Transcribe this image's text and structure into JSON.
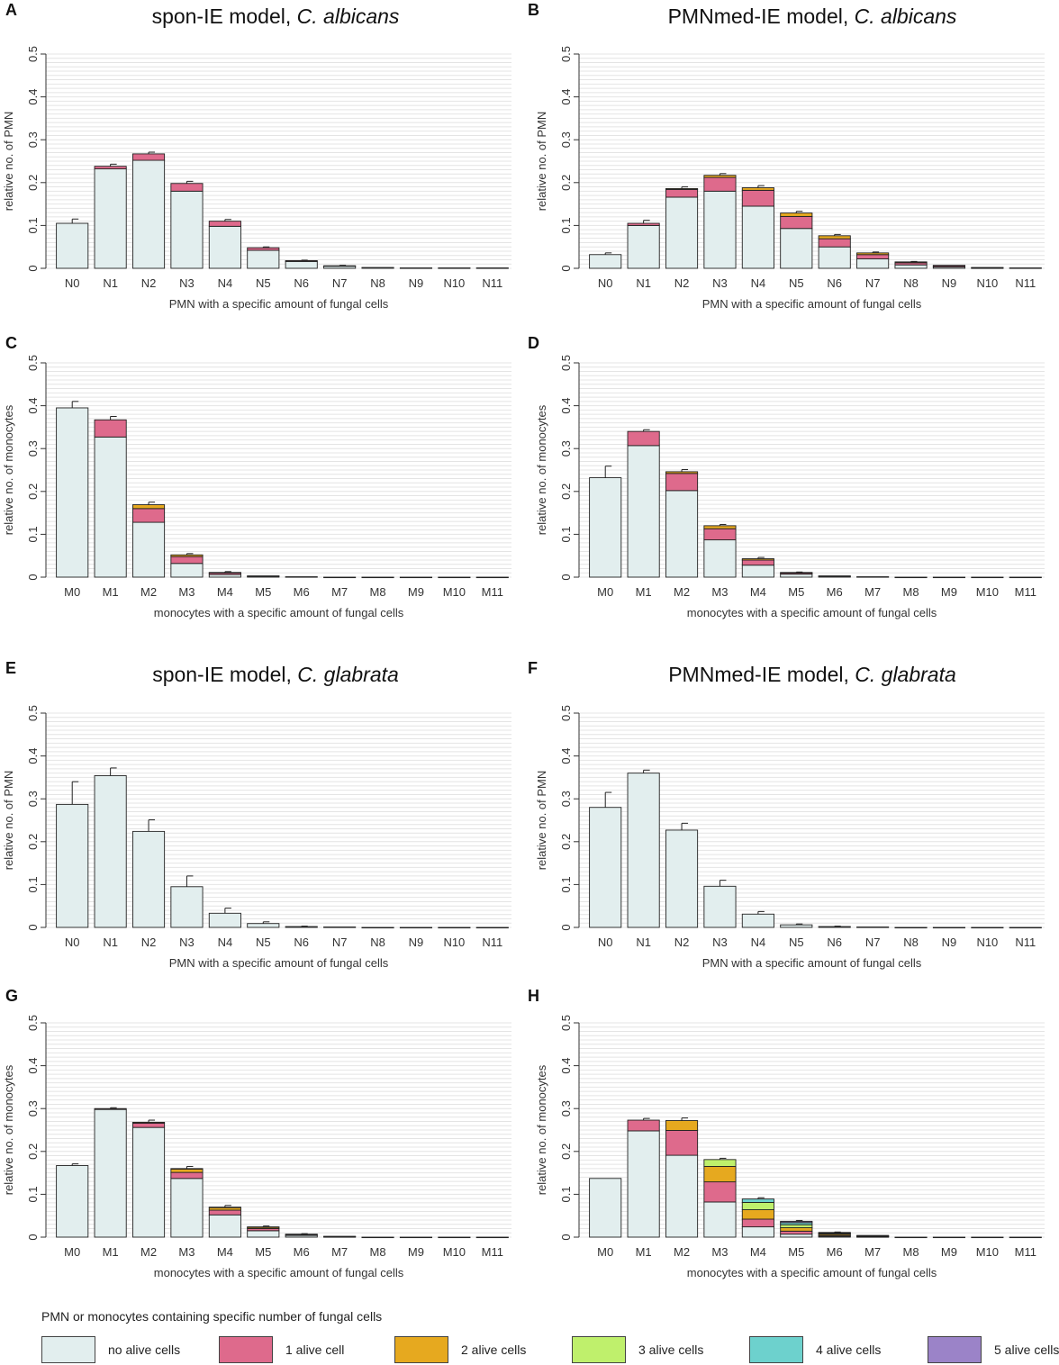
{
  "colors": {
    "none": "#e2eeee",
    "one": "#de6a8c",
    "two": "#e6a91f",
    "three": "#bff06c",
    "four": "#6dd1cd",
    "five": "#9b83c8",
    "axis": "#333333",
    "grid": "#e4e4e4"
  },
  "legend": {
    "title": "PMN or monocytes containing specific number of fungal cells",
    "items": [
      {
        "key": "none",
        "label": "no alive cells"
      },
      {
        "key": "one",
        "label": "1 alive cell"
      },
      {
        "key": "two",
        "label": "2 alive cells"
      },
      {
        "key": "three",
        "label": "3 alive cells"
      },
      {
        "key": "four",
        "label": "4 alive cells"
      },
      {
        "key": "five",
        "label": "5 alive cells"
      }
    ]
  },
  "section_titles": [
    {
      "plain": "spon-IE model, ",
      "italic": "C. albicans"
    },
    {
      "plain": "PMNmed-IE model, ",
      "italic": "C. albicans"
    },
    {
      "plain": "spon-IE model, ",
      "italic": "C. glabrata"
    },
    {
      "plain": "PMNmed-IE model, ",
      "italic": "C. glabrata"
    }
  ],
  "chart_data": [
    {
      "panel": "A",
      "type": "bar",
      "stacked": true,
      "categories": [
        "N0",
        "N1",
        "N2",
        "N3",
        "N4",
        "N5",
        "N6",
        "N7",
        "N8",
        "N9",
        "N10",
        "N11"
      ],
      "series": [
        {
          "name": "no alive cells",
          "values": [
            0.105,
            0.232,
            0.252,
            0.18,
            0.098,
            0.042,
            0.016,
            0.005,
            0.002,
            0.001,
            0.001,
            0.001
          ]
        },
        {
          "name": "1 alive cell",
          "values": [
            0,
            0.006,
            0.015,
            0.018,
            0.012,
            0.006,
            0.002,
            0.001,
            0,
            0,
            0,
            0
          ]
        },
        {
          "name": "2 alive cells",
          "values": [
            0,
            0,
            0,
            0,
            0,
            0,
            0,
            0,
            0,
            0,
            0,
            0
          ]
        }
      ],
      "errors": [
        0.01,
        0.005,
        0.004,
        0.005,
        0.004,
        0.002,
        0.001,
        0.001,
        0,
        0,
        0,
        0
      ],
      "ylabel": "relative no. of PMN",
      "xlabel": "PMN with a specific amount of fungal cells",
      "ylim": [
        0,
        0.5
      ],
      "yticks": [
        "0",
        "0.1",
        "0.2",
        "0.3",
        "0.4",
        "0.5"
      ]
    },
    {
      "panel": "B",
      "type": "bar",
      "stacked": true,
      "categories": [
        "N0",
        "N1",
        "N2",
        "N3",
        "N4",
        "N5",
        "N6",
        "N7",
        "N8",
        "N9",
        "N10",
        "N11"
      ],
      "series": [
        {
          "name": "no alive cells",
          "values": [
            0.032,
            0.1,
            0.166,
            0.18,
            0.145,
            0.093,
            0.05,
            0.022,
            0.008,
            0.003,
            0.001,
            0.001
          ]
        },
        {
          "name": "1 alive cell",
          "values": [
            0,
            0.005,
            0.018,
            0.032,
            0.037,
            0.028,
            0.019,
            0.01,
            0.005,
            0.003,
            0.001,
            0
          ]
        },
        {
          "name": "2 alive cells",
          "values": [
            0,
            0,
            0.002,
            0.005,
            0.006,
            0.008,
            0.007,
            0.004,
            0.002,
            0.001,
            0,
            0
          ]
        }
      ],
      "errors": [
        0.004,
        0.007,
        0.004,
        0.004,
        0.005,
        0.004,
        0.003,
        0.002,
        0.001,
        0,
        0,
        0
      ],
      "ylabel": "relative no. of PMN",
      "xlabel": "PMN with a specific amount of fungal cells",
      "ylim": [
        0,
        0.5
      ],
      "yticks": [
        "0",
        "0.1",
        "0.2",
        "0.3",
        "0.4",
        "0.5"
      ]
    },
    {
      "panel": "C",
      "type": "bar",
      "stacked": true,
      "categories": [
        "M0",
        "M1",
        "M2",
        "M3",
        "M4",
        "M5",
        "M6",
        "M7",
        "M8",
        "M9",
        "M10",
        "M11"
      ],
      "series": [
        {
          "name": "no alive cells",
          "values": [
            0.395,
            0.327,
            0.128,
            0.032,
            0.006,
            0.002,
            0.001,
            0,
            0,
            0,
            0,
            0
          ]
        },
        {
          "name": "1 alive cell",
          "values": [
            0,
            0.04,
            0.032,
            0.016,
            0.004,
            0.001,
            0,
            0,
            0,
            0,
            0,
            0
          ]
        },
        {
          "name": "2 alive cells",
          "values": [
            0,
            0,
            0.009,
            0.004,
            0.001,
            0,
            0,
            0,
            0,
            0,
            0,
            0
          ]
        }
      ],
      "errors": [
        0.015,
        0.008,
        0.006,
        0.003,
        0.002,
        0,
        0,
        0,
        0,
        0,
        0,
        0
      ],
      "ylabel": "relative no. of monocytes",
      "xlabel": "monocytes with a specific amount of fungal cells",
      "ylim": [
        0,
        0.5
      ],
      "yticks": [
        "0",
        "0.1",
        "0.2",
        "0.3",
        "0.4",
        "0.5"
      ]
    },
    {
      "panel": "D",
      "type": "bar",
      "stacked": true,
      "categories": [
        "M0",
        "M1",
        "M2",
        "M3",
        "M4",
        "M5",
        "M6",
        "M7",
        "M8",
        "M9",
        "M10",
        "M11"
      ],
      "series": [
        {
          "name": "no alive cells",
          "values": [
            0.232,
            0.307,
            0.202,
            0.087,
            0.028,
            0.007,
            0.002,
            0.001,
            0,
            0,
            0,
            0
          ]
        },
        {
          "name": "1 alive cell",
          "values": [
            0,
            0.033,
            0.04,
            0.026,
            0.012,
            0.003,
            0.001,
            0,
            0,
            0,
            0,
            0
          ]
        },
        {
          "name": "2 alive cells",
          "values": [
            0,
            0,
            0.004,
            0.007,
            0.003,
            0.001,
            0,
            0,
            0,
            0,
            0,
            0
          ]
        }
      ],
      "errors": [
        0.027,
        0.004,
        0.005,
        0.003,
        0.003,
        0.001,
        0,
        0,
        0,
        0,
        0,
        0
      ],
      "ylabel": "relative no. of monocytes",
      "xlabel": "monocytes with a specific amount of fungal cells",
      "ylim": [
        0,
        0.5
      ],
      "yticks": [
        "0",
        "0.1",
        "0.2",
        "0.3",
        "0.4",
        "0.5"
      ]
    },
    {
      "panel": "E",
      "type": "bar",
      "stacked": true,
      "categories": [
        "N0",
        "N1",
        "N2",
        "N3",
        "N4",
        "N5",
        "N6",
        "N7",
        "N8",
        "N9",
        "N10",
        "N11"
      ],
      "series": [
        {
          "name": "no alive cells",
          "values": [
            0.287,
            0.354,
            0.224,
            0.095,
            0.033,
            0.009,
            0.002,
            0.001,
            0,
            0,
            0,
            0
          ]
        }
      ],
      "errors": [
        0.053,
        0.018,
        0.027,
        0.025,
        0.012,
        0.004,
        0.001,
        0,
        0,
        0,
        0,
        0
      ],
      "ylabel": "relative no. of PMN",
      "xlabel": "PMN with a specific amount of fungal cells",
      "ylim": [
        0,
        0.5
      ],
      "yticks": [
        "0",
        "0.1",
        "0.2",
        "0.3",
        "0.4",
        "0.5"
      ]
    },
    {
      "panel": "F",
      "type": "bar",
      "stacked": true,
      "categories": [
        "N0",
        "N1",
        "N2",
        "N3",
        "N4",
        "N5",
        "N6",
        "N7",
        "N8",
        "N9",
        "N10",
        "N11"
      ],
      "series": [
        {
          "name": "no alive cells",
          "values": [
            0.28,
            0.36,
            0.227,
            0.096,
            0.031,
            0.006,
            0.002,
            0.001,
            0,
            0,
            0,
            0
          ]
        }
      ],
      "errors": [
        0.035,
        0.007,
        0.016,
        0.014,
        0.006,
        0.002,
        0.001,
        0,
        0,
        0,
        0,
        0
      ],
      "ylabel": "relative no. of PMN",
      "xlabel": "PMN with a specific amount of fungal cells",
      "ylim": [
        0,
        0.5
      ],
      "yticks": [
        "0",
        "0.1",
        "0.2",
        "0.3",
        "0.4",
        "0.5"
      ]
    },
    {
      "panel": "G",
      "type": "bar",
      "stacked": true,
      "categories": [
        "M0",
        "M1",
        "M2",
        "M3",
        "M4",
        "M5",
        "M6",
        "M7",
        "M8",
        "M9",
        "M10",
        "M11"
      ],
      "series": [
        {
          "name": "no alive cells",
          "values": [
            0.167,
            0.298,
            0.256,
            0.137,
            0.052,
            0.015,
            0.004,
            0.001,
            0,
            0,
            0,
            0
          ]
        },
        {
          "name": "1 alive cell",
          "values": [
            0,
            0.002,
            0.01,
            0.014,
            0.011,
            0.005,
            0.002,
            0.001,
            0,
            0,
            0,
            0
          ]
        },
        {
          "name": "2 alive cells",
          "values": [
            0,
            0,
            0.002,
            0.008,
            0.006,
            0.003,
            0.001,
            0,
            0,
            0,
            0,
            0
          ]
        },
        {
          "name": "3 alive cells",
          "values": [
            0,
            0,
            0,
            0.001,
            0.001,
            0.001,
            0,
            0,
            0,
            0,
            0,
            0
          ]
        }
      ],
      "errors": [
        0.004,
        0.002,
        0.005,
        0.005,
        0.004,
        0.002,
        0.001,
        0,
        0,
        0,
        0,
        0
      ],
      "ylabel": "relative no. of monocytes",
      "xlabel": "monocytes with a specific amount of fungal cells",
      "ylim": [
        0,
        0.5
      ],
      "yticks": [
        "0",
        "0.1",
        "0.2",
        "0.3",
        "0.4",
        "0.5"
      ]
    },
    {
      "panel": "H",
      "type": "bar",
      "stacked": true,
      "categories": [
        "M0",
        "M1",
        "M2",
        "M3",
        "M4",
        "M5",
        "M6",
        "M7",
        "M8",
        "M9",
        "M10",
        "M11"
      ],
      "series": [
        {
          "name": "no alive cells",
          "values": [
            0.137,
            0.248,
            0.191,
            0.082,
            0.024,
            0.007,
            0.002,
            0.001,
            0,
            0,
            0,
            0
          ]
        },
        {
          "name": "1 alive cell",
          "values": [
            0,
            0.025,
            0.058,
            0.047,
            0.018,
            0.007,
            0.002,
            0.001,
            0,
            0,
            0,
            0
          ]
        },
        {
          "name": "2 alive cells",
          "values": [
            0,
            0,
            0.023,
            0.036,
            0.022,
            0.008,
            0.003,
            0.001,
            0,
            0,
            0,
            0
          ]
        },
        {
          "name": "3 alive cells",
          "values": [
            0,
            0,
            0,
            0.016,
            0.017,
            0.007,
            0.002,
            0.001,
            0,
            0,
            0,
            0
          ]
        },
        {
          "name": "4 alive cells",
          "values": [
            0,
            0,
            0,
            0,
            0.008,
            0.005,
            0.001,
            0,
            0,
            0,
            0,
            0
          ]
        },
        {
          "name": "5 alive cells",
          "values": [
            0,
            0,
            0,
            0,
            0,
            0.003,
            0.001,
            0,
            0,
            0,
            0,
            0
          ]
        }
      ],
      "errors": [
        0,
        0.004,
        0.006,
        0.003,
        0.003,
        0.002,
        0.001,
        0,
        0,
        0,
        0,
        0
      ],
      "ylabel": "relative no. of monocytes",
      "xlabel": "monocytes with a specific amount of fungal cells",
      "ylim": [
        0,
        0.5
      ],
      "yticks": [
        "0",
        "0.1",
        "0.2",
        "0.3",
        "0.4",
        "0.5"
      ]
    }
  ]
}
